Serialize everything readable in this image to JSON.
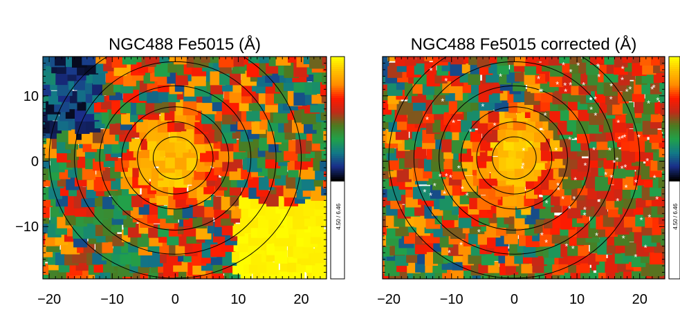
{
  "chart_data": [
    {
      "type": "heatmap",
      "title": "NGC488 Fe5015 (Å)",
      "xlabel": "",
      "ylabel": "",
      "xlim": [
        -21,
        24
      ],
      "ylim": [
        -18,
        16
      ],
      "x_ticks": [
        -20,
        -10,
        0,
        10,
        20
      ],
      "y_ticks": [
        10,
        0,
        -10
      ],
      "x_tick_labels": [
        "−20",
        "−10",
        "0",
        "10",
        "20"
      ],
      "y_tick_labels": [
        "10",
        "0",
        "−10"
      ],
      "colorbar": {
        "orientation": "vertical",
        "range_label": "4.50 / 6.46",
        "colors": [
          "#ffffff",
          "#000000",
          "#1a2f8a",
          "#127a86",
          "#21a14a",
          "#4d7a20",
          "#c22a18",
          "#ff1a00",
          "#ff8c00",
          "#ffc000",
          "#ffff00"
        ]
      },
      "contour_radii": [
        3.5,
        6,
        8.5,
        12,
        16,
        20
      ],
      "contour_center": [
        0,
        0.5
      ],
      "markers": false
    },
    {
      "type": "heatmap",
      "title": "NGC488 Fe5015 corrected (Å)",
      "xlabel": "",
      "ylabel": "",
      "xlim": [
        -21,
        24
      ],
      "ylim": [
        -18,
        16
      ],
      "x_ticks": [
        -20,
        -10,
        0,
        10,
        20
      ],
      "x_tick_labels": [
        "−20",
        "−10",
        "0",
        "10",
        "20"
      ],
      "colorbar": {
        "orientation": "vertical",
        "range_label": "4.50 / 6.46",
        "colors": [
          "#ffffff",
          "#000000",
          "#1a2f8a",
          "#127a86",
          "#21a14a",
          "#4d7a20",
          "#c22a18",
          "#ff1a00",
          "#ff8c00",
          "#ffc000",
          "#ffff00"
        ]
      },
      "contour_radii": [
        3.5,
        6,
        8.5,
        12,
        16,
        20
      ],
      "contour_center": [
        0,
        0.5
      ],
      "markers": true
    }
  ]
}
